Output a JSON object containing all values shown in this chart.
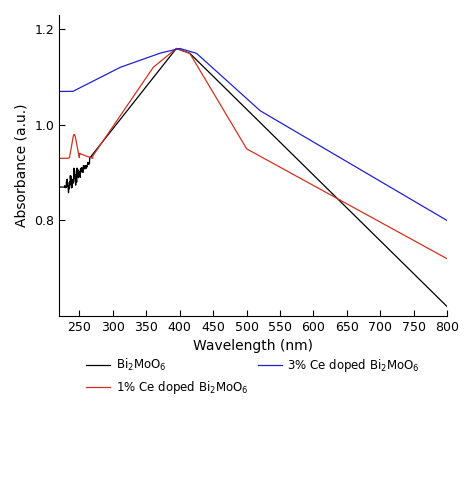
{
  "title": "",
  "xlabel": "Wavelength (nm)",
  "ylabel": "Absorbance (a.u.)",
  "xlim": [
    220,
    800
  ],
  "ylim": [
    0.6,
    1.23
  ],
  "yticks": [
    0.8,
    1.0,
    1.2
  ],
  "xticks": [
    250,
    300,
    350,
    400,
    450,
    500,
    550,
    600,
    650,
    700,
    750,
    800
  ],
  "colors": {
    "black": "#000000",
    "red": "#cc3322",
    "blue": "#2222cc"
  },
  "legend": [
    {
      "label": "Bi$_2$MoO$_6$",
      "color": "#000000"
    },
    {
      "label": "1% Ce doped Bi$_2$MoO$_6$",
      "color": "#cc3322"
    },
    {
      "label": "3% Ce doped Bi$_2$MoO$_6$",
      "color": "#2222cc"
    }
  ]
}
